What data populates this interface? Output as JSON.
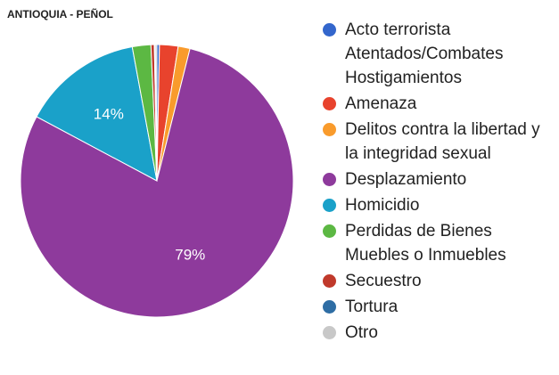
{
  "chart_data": {
    "type": "pie",
    "title": "ANTIOQUIA - PEÑOL",
    "categories": [
      "Acto terrorista Atentados/Combates Hostigamientos",
      "Amenaza",
      "Delitos contra la libertad y la integridad sexual",
      "Desplazamiento",
      "Homicidio",
      "Perdidas de Bienes Muebles o Inmuebles",
      "Secuestro",
      "Tortura",
      "Otro"
    ],
    "values": [
      0.3,
      2.2,
      1.4,
      78.9,
      14.3,
      2.2,
      0.4,
      0.1,
      0.2
    ],
    "value_labels": [
      null,
      null,
      null,
      "79%",
      "14%",
      null,
      null,
      null,
      null
    ],
    "colors": [
      "#3366cc",
      "#e8432d",
      "#f99b2c",
      "#8e3a9c",
      "#1aa1c9",
      "#5cb843",
      "#c0392b",
      "#2e6da4",
      "#c8c8c8"
    ],
    "legend": "right"
  }
}
